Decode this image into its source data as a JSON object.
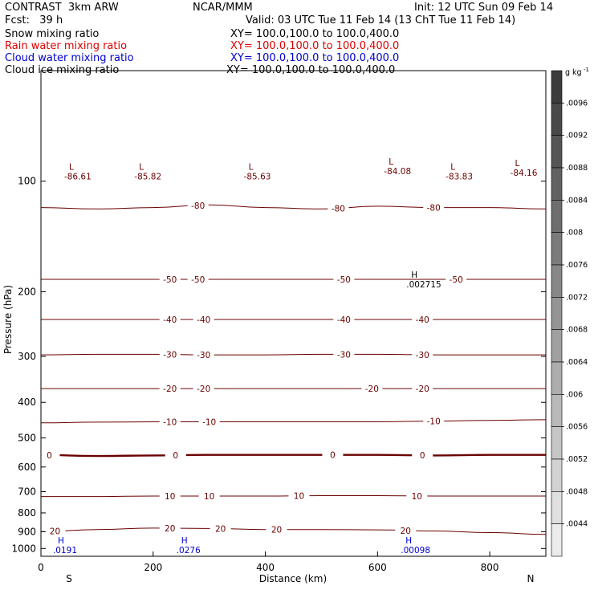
{
  "header": {
    "model": "CONTRAST  3km ARW",
    "fcst": "Fcst:   39 h",
    "center": "NCAR/MMM",
    "init": "Init: 12 UTC Sun 09 Feb 14",
    "valid": "Valid: 03 UTC Tue 11 Feb 14 (13 ChT Tue 11 Feb 14)"
  },
  "fields": [
    {
      "name": "Snow mixing ratio",
      "xs": "XY= 100.0,100.0 to 100.0,400.0",
      "color": "#000000"
    },
    {
      "name": "Rain water mixing ratio",
      "xs": "XY= 100.0,100.0 to 100.0,400.0",
      "color": "#e00000"
    },
    {
      "name": "Cloud water mixing ratio",
      "xs": "XY= 100.0,100.0 to 100.0,400.0",
      "color": "#0000d0"
    },
    {
      "name": "Cloud ice mixing ratio",
      "xs": "XY= 100.0,100.0 to 100.0,400.0",
      "color": "#000000"
    }
  ],
  "chart_data": {
    "type": "contour",
    "xlabel": "Distance (km)",
    "ylabel": "Pressure (hPa)",
    "xlim": [
      0,
      900
    ],
    "ylim": [
      1050,
      50
    ],
    "y_scale": "log",
    "x_ticks": [
      0,
      200,
      400,
      600,
      800
    ],
    "y_ticks": [
      100,
      200,
      300,
      400,
      500,
      600,
      700,
      800,
      900,
      1000
    ],
    "x_end_labels": {
      "left": "S",
      "right": "N"
    },
    "contour_color": "#6b0000",
    "temperature_contours": [
      {
        "value": -80,
        "label": "-80",
        "p": [
          118,
          119,
          118,
          116,
          118,
          119,
          117,
          118,
          118,
          119
        ],
        "labels_at_x": [
          280,
          530,
          700
        ]
      },
      {
        "value": -50,
        "label": "-50",
        "p": [
          185,
          185,
          185,
          185,
          185,
          185,
          185,
          185,
          185,
          185
        ],
        "labels_at_x": [
          230,
          280,
          540,
          740
        ]
      },
      {
        "value": -40,
        "label": "-40",
        "p": [
          238,
          238,
          238,
          238,
          238,
          238,
          238,
          238,
          238,
          238
        ],
        "labels_at_x": [
          230,
          290,
          540,
          680
        ]
      },
      {
        "value": -30,
        "label": "-30",
        "p": [
          297,
          296,
          296,
          297,
          297,
          296,
          296,
          297,
          297,
          297
        ],
        "labels_at_x": [
          230,
          290,
          540,
          680
        ]
      },
      {
        "value": -20,
        "label": "-20",
        "p": [
          367,
          367,
          367,
          367,
          367,
          367,
          367,
          367,
          367,
          367
        ],
        "labels_at_x": [
          230,
          290,
          590,
          680
        ]
      },
      {
        "value": -10,
        "label": "-10",
        "p": [
          455,
          453,
          452,
          452,
          452,
          452,
          452,
          450,
          448,
          446
        ],
        "labels_at_x": [
          230,
          300,
          700
        ]
      },
      {
        "value": 0,
        "label": "0",
        "p": [
          556,
          560,
          558,
          556,
          556,
          556,
          556,
          558,
          556,
          556
        ],
        "labels_at_x": [
          15,
          240,
          520,
          680
        ]
      },
      {
        "value": 10,
        "label": "10",
        "p": [
          722,
          722,
          720,
          720,
          720,
          718,
          718,
          720,
          720,
          720
        ],
        "labels_at_x": [
          230,
          300,
          460,
          670
        ]
      },
      {
        "value": 20,
        "label": "20",
        "p": [
          900,
          888,
          880,
          882,
          888,
          888,
          890,
          896,
          905,
          915
        ],
        "labels_at_x": [
          25,
          230,
          320,
          420,
          650
        ]
      }
    ],
    "highs_lows": [
      {
        "type": "L",
        "value": "-86.61",
        "x": 50,
        "p": 93
      },
      {
        "type": "L",
        "value": "-85.82",
        "x": 175,
        "p": 93
      },
      {
        "type": "L",
        "value": "-85.63",
        "x": 370,
        "p": 93
      },
      {
        "type": "L",
        "value": "-84.08",
        "x": 620,
        "p": 90
      },
      {
        "type": "L",
        "value": "-83.83",
        "x": 730,
        "p": 93
      },
      {
        "type": "L",
        "value": "-84.16",
        "x": 845,
        "p": 91
      },
      {
        "type": "H",
        "value": ".002715",
        "x": 660,
        "p": 183,
        "field": "Cloud ice mixing ratio"
      },
      {
        "type": "H",
        "value": ".0191",
        "x": 30,
        "p": 968,
        "field": "Cloud water mixing ratio"
      },
      {
        "type": "H",
        "value": ".0276",
        "x": 250,
        "p": 968,
        "field": "Cloud water mixing ratio"
      },
      {
        "type": "H",
        "value": ".00098",
        "x": 650,
        "p": 968,
        "field": "Cloud water mixing ratio"
      }
    ],
    "colorbar": {
      "unit": "g kg",
      "unit_superscript": "-1",
      "ticks": [
        ".0096",
        ".0092",
        ".0088",
        ".0084",
        ".008",
        ".0076",
        ".0072",
        ".0068",
        ".0064",
        ".006",
        ".0056",
        ".0052",
        ".0048",
        ".0044"
      ]
    }
  }
}
